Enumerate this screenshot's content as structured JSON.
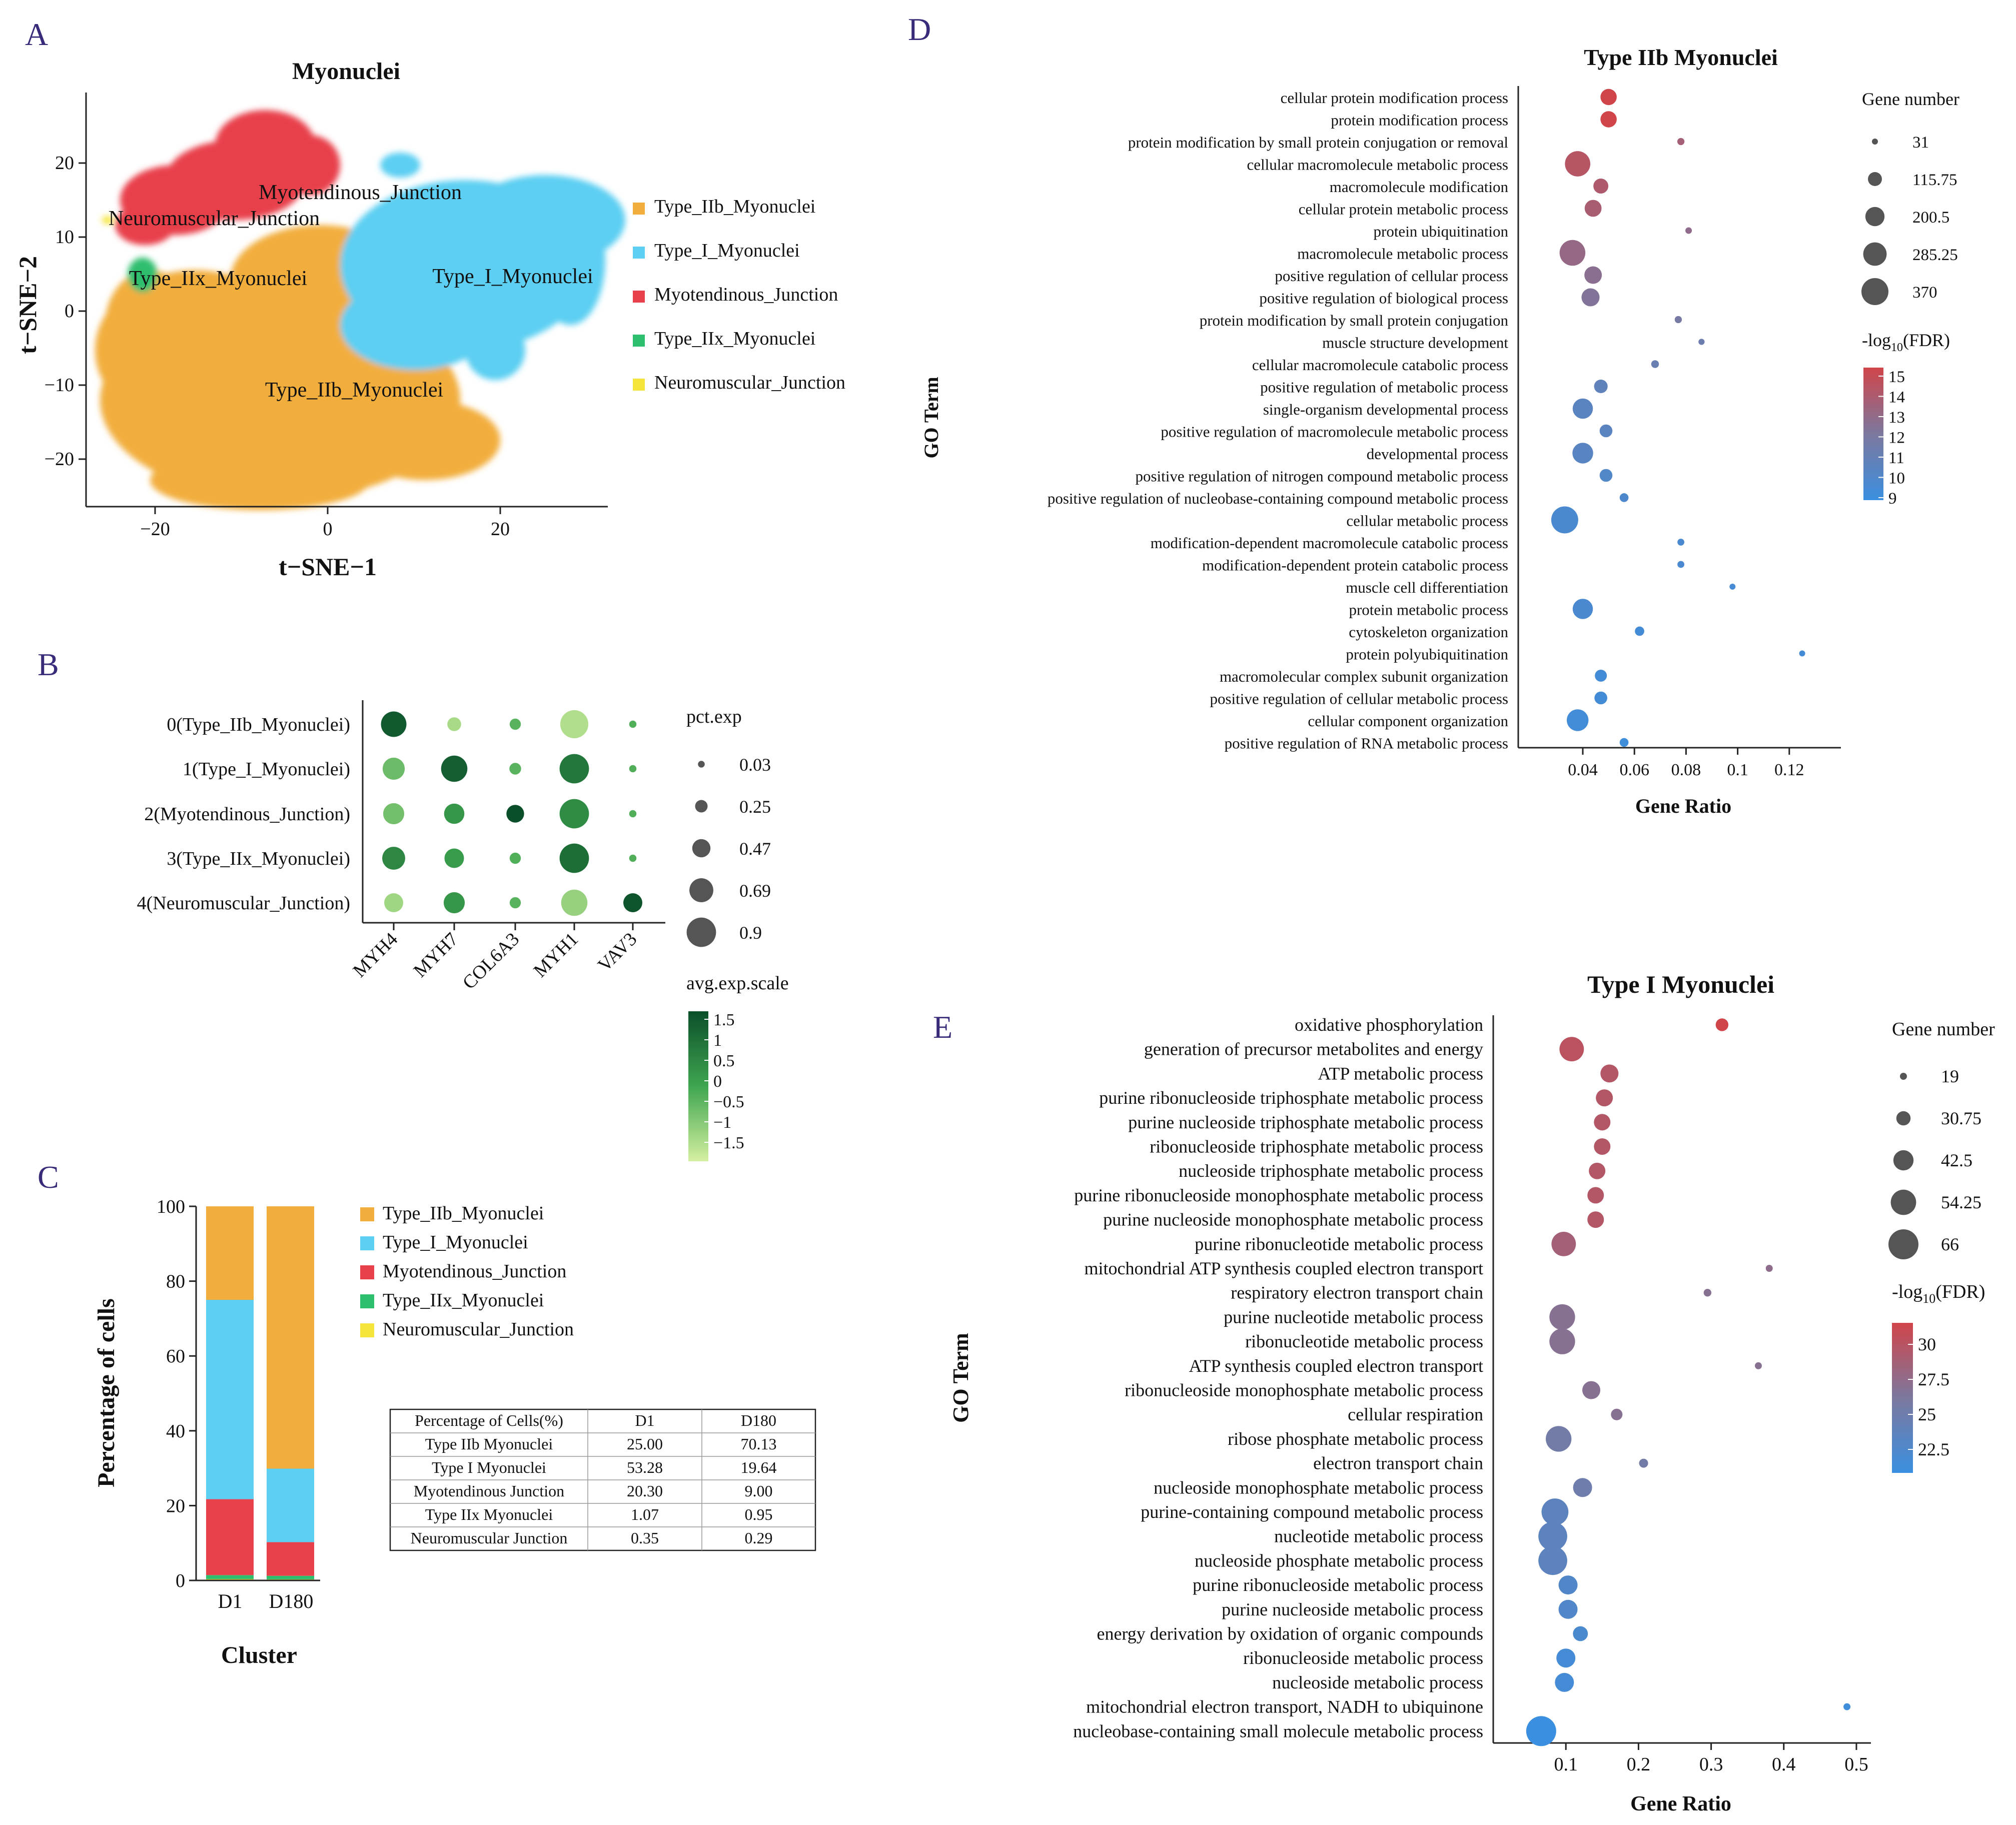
{
  "panel_letters": {
    "a": "A",
    "b": "B",
    "c": "C",
    "d": "D",
    "e": "E"
  },
  "colors": {
    "typeIIb": "#F2AE3C",
    "typeI": "#5CCFF2",
    "myo": "#E8414B",
    "typeIIx": "#2DBE6E",
    "nmj": "#F5E43A",
    "fdr_high": "#D0454A",
    "fdr_low": "#3A8FE0",
    "green_high": "#0B4F2A",
    "green_mid": "#3FA550",
    "green_low": "#D4F0A0"
  },
  "chart_data": [
    {
      "panel": "A",
      "type": "scatter",
      "title": "Myonuclei",
      "xlabel": "t−SNE−1",
      "ylabel": "t−SNE−2",
      "xticks": [
        "−20",
        "0",
        "20"
      ],
      "yticks": [
        "20",
        "10",
        "0",
        "−10",
        "−20"
      ],
      "xlim": [
        -28,
        32
      ],
      "ylim": [
        -27.5,
        29
      ],
      "cluster_labels": [
        "Myotendinous_Junction",
        "Neuromuscular_Junction",
        "Type_IIx_Myonuclei",
        "Type_I_Myonuclei",
        "Type_IIb_Myonuclei"
      ],
      "legend": [
        "Type_IIb_Myonuclei",
        "Type_I_Myonuclei",
        "Myotendinous_Junction",
        "Type_IIx_Myonuclei",
        "Neuromuscular_Junction"
      ]
    },
    {
      "panel": "B",
      "type": "scatter",
      "genes": [
        "MYH4",
        "MYH7",
        "COL6A3",
        "MYH1",
        "VAV3"
      ],
      "clusters": [
        "0(Type_IIb_Myonuclei)",
        "1(Type_I_Myonuclei)",
        "2(Myotendinous_Junction)",
        "3(Type_IIx_Myonuclei)",
        "4(Neuromuscular_Junction)"
      ],
      "pct_exp": [
        [
          0.75,
          0.3,
          0.2,
          0.85,
          0.05
        ],
        [
          0.62,
          0.78,
          0.22,
          0.9,
          0.05
        ],
        [
          0.58,
          0.55,
          0.45,
          0.9,
          0.05
        ],
        [
          0.65,
          0.52,
          0.2,
          0.9,
          0.05
        ],
        [
          0.5,
          0.58,
          0.2,
          0.78,
          0.5
        ]
      ],
      "avg_exp_scale": [
        [
          1.5,
          -1.2,
          -0.3,
          -1.3,
          -0.2
        ],
        [
          -0.5,
          1.4,
          -0.3,
          0.9,
          -0.2
        ],
        [
          -0.6,
          0.3,
          1.7,
          0.5,
          -0.2
        ],
        [
          0.6,
          0.2,
          -0.2,
          1.1,
          -0.2
        ],
        [
          -1.1,
          0.3,
          -0.3,
          -1.0,
          1.6
        ]
      ],
      "size_legend_title": "pct.exp",
      "size_legend": [
        "0.03",
        "0.25",
        "0.47",
        "0.69",
        "0.9"
      ],
      "color_legend_title": "avg.exp.scale",
      "color_legend": [
        "1.5",
        "1",
        "0.5",
        "0",
        "−0.5",
        "−1",
        "−1.5"
      ]
    },
    {
      "panel": "C",
      "type": "bar",
      "categories": [
        "D1",
        "D180"
      ],
      "series": [
        {
          "name": "Neuromuscular_Junction",
          "values": [
            0.35,
            0.29
          ]
        },
        {
          "name": "Type_IIx_Myonuclei",
          "values": [
            1.07,
            0.95
          ]
        },
        {
          "name": "Myotendinous_Junction",
          "values": [
            20.3,
            9.0
          ]
        },
        {
          "name": "Type_I_Myonuclei",
          "values": [
            53.28,
            19.64
          ]
        },
        {
          "name": "Type_IIb_Myonuclei",
          "values": [
            25.0,
            70.13
          ]
        }
      ],
      "legend": [
        "Type_IIb_Myonuclei",
        "Type_I_Myonuclei",
        "Myotendinous_Junction",
        "Type_IIx_Myonuclei",
        "Neuromuscular_Junction"
      ],
      "xlabel": "Cluster",
      "ylabel": "Percentage of cells",
      "ylim": [
        0,
        100
      ],
      "yticks": [
        "0",
        "20",
        "40",
        "60",
        "80",
        "100"
      ],
      "table": {
        "header": [
          "Percentage of Cells(%)",
          "D1",
          "D180"
        ],
        "rows": [
          [
            "Type IIb Myonuclei",
            "25.00",
            "70.13"
          ],
          [
            "Type I Myonuclei",
            "53.28",
            "19.64"
          ],
          [
            "Myotendinous Junction",
            "20.30",
            "9.00"
          ],
          [
            "Type IIx Myonuclei",
            "1.07",
            "0.95"
          ],
          [
            "Neuromuscular Junction",
            "0.35",
            "0.29"
          ]
        ]
      }
    },
    {
      "panel": "D",
      "type": "scatter",
      "title": "Type IIb Myonuclei",
      "xlabel": "Gene Ratio",
      "ylabel": "GO Term",
      "xlim": [
        0.015,
        0.14
      ],
      "xticks": [
        "0.04",
        "0.06",
        "0.08",
        "0.1",
        "0.12"
      ],
      "terms": [
        "cellular protein modification process",
        "protein modification process",
        "protein modification by small protein conjugation or removal",
        "cellular macromolecule metabolic process",
        "macromolecule modification",
        "cellular protein metabolic process",
        "protein ubiquitination",
        "macromolecule metabolic process",
        "positive regulation of cellular process",
        "positive regulation of biological process",
        "protein modification by small protein conjugation",
        "muscle structure development",
        "cellular macromolecule catabolic process",
        "positive regulation of metabolic process",
        "single-organism developmental process",
        "positive regulation of macromolecule metabolic process",
        "developmental process",
        "positive regulation of nitrogen compound metabolic process",
        "positive regulation of nucleobase-containing compound metabolic process",
        "cellular metabolic process",
        "modification-dependent macromolecule catabolic process",
        "modification-dependent protein catabolic process",
        "muscle cell differentiation",
        "protein metabolic process",
        "cytoskeleton organization",
        "protein polyubiquitination",
        "macromolecular complex subunit organization",
        "positive regulation of cellular metabolic process",
        "cellular component organization",
        "positive regulation of RNA metabolic process"
      ],
      "gene_ratio": [
        0.05,
        0.05,
        0.078,
        0.038,
        0.047,
        0.044,
        0.081,
        0.036,
        0.044,
        0.043,
        0.077,
        0.086,
        0.068,
        0.047,
        0.04,
        0.049,
        0.04,
        0.049,
        0.056,
        0.033,
        0.078,
        0.078,
        0.098,
        0.04,
        0.062,
        0.125,
        0.047,
        0.047,
        0.038,
        0.056
      ],
      "gene_number": [
        150,
        150,
        40,
        330,
        130,
        160,
        35,
        340,
        170,
        180,
        40,
        32,
        45,
        110,
        220,
        100,
        230,
        100,
        55,
        370,
        38,
        38,
        31,
        220,
        60,
        31,
        90,
        100,
        250,
        55
      ],
      "neg_log10_fdr": [
        15.5,
        15.5,
        13.8,
        14.5,
        14.2,
        14.0,
        13.0,
        13.2,
        12.8,
        12.5,
        12.0,
        11.5,
        11.3,
        10.8,
        10.6,
        10.6,
        10.5,
        10.2,
        10.0,
        9.8,
        9.8,
        9.8,
        9.6,
        9.8,
        9.5,
        9.5,
        9.5,
        9.5,
        9.4,
        9.3
      ],
      "size_legend_title": "Gene number",
      "size_legend": [
        "31",
        "115.75",
        "200.5",
        "285.25",
        "370"
      ],
      "color_legend_title": "-log",
      "color_legend_sub": "10",
      "color_legend_suffix": "(FDR)",
      "color_legend": [
        "15",
        "14",
        "13",
        "12",
        "11",
        "10",
        "9"
      ]
    },
    {
      "panel": "E",
      "type": "scatter",
      "title": "Type I Myonuclei",
      "xlabel": "Gene Ratio",
      "ylabel": "GO Term",
      "xlim": [
        0.0,
        0.52
      ],
      "xticks": [
        "0.1",
        "0.2",
        "0.3",
        "0.4",
        "0.5"
      ],
      "terms": [
        "oxidative phosphorylation",
        "generation of precursor metabolites and energy",
        "ATP metabolic process",
        "purine ribonucleoside triphosphate metabolic process",
        "purine nucleoside triphosphate metabolic process",
        "ribonucleoside triphosphate metabolic process",
        "nucleoside triphosphate metabolic process",
        "purine ribonucleoside monophosphate metabolic process",
        "purine nucleoside monophosphate metabolic process",
        "purine ribonucleotide metabolic process",
        "mitochondrial ATP synthesis coupled electron transport",
        "respiratory electron transport chain",
        "purine nucleotide metabolic process",
        "ribonucleotide metabolic process",
        "ATP synthesis coupled electron transport",
        "ribonucleoside monophosphate metabolic process",
        "cellular respiration",
        "ribose phosphate metabolic process",
        "electron transport chain",
        "nucleoside monophosphate metabolic process",
        "purine-containing compound metabolic process",
        "nucleotide metabolic process",
        "nucleoside phosphate metabolic process",
        "purine ribonucleoside metabolic process",
        "purine nucleoside metabolic process",
        "energy derivation by oxidation of organic compounds",
        "ribonucleoside metabolic process",
        "nucleoside metabolic process",
        "mitochondrial electron transport, NADH to ubiquinone",
        "nucleobase-containing small molecule metabolic process"
      ],
      "gene_ratio": [
        0.315,
        0.108,
        0.16,
        0.153,
        0.15,
        0.15,
        0.143,
        0.141,
        0.141,
        0.097,
        0.38,
        0.295,
        0.095,
        0.095,
        0.365,
        0.135,
        0.17,
        0.09,
        0.207,
        0.123,
        0.085,
        0.082,
        0.082,
        0.103,
        0.103,
        0.12,
        0.1,
        0.098,
        0.487,
        0.066
      ],
      "gene_number": [
        28,
        52,
        38,
        36,
        35,
        35,
        35,
        35,
        35,
        52,
        19,
        20,
        55,
        55,
        19,
        38,
        26,
        55,
        22,
        40,
        58,
        63,
        63,
        40,
        40,
        32,
        40,
        40,
        19,
        66
      ],
      "neg_log10_fdr": [
        33.0,
        31.5,
        31.0,
        31.0,
        31.0,
        31.0,
        31.0,
        31.0,
        31.0,
        30.0,
        28.5,
        28.0,
        28.0,
        28.0,
        28.0,
        28.0,
        28.0,
        26.5,
        26.5,
        26.0,
        24.5,
        24.5,
        24.5,
        23.5,
        23.5,
        23.0,
        22.5,
        22.5,
        22.0,
        21.5
      ],
      "size_legend_title": "Gene number",
      "size_legend": [
        "19",
        "30.75",
        "42.5",
        "54.25",
        "66"
      ],
      "color_legend_title": "-log",
      "color_legend_sub": "10",
      "color_legend_suffix": "(FDR)",
      "color_legend": [
        "30",
        "27.5",
        "25",
        "22.5"
      ]
    }
  ]
}
